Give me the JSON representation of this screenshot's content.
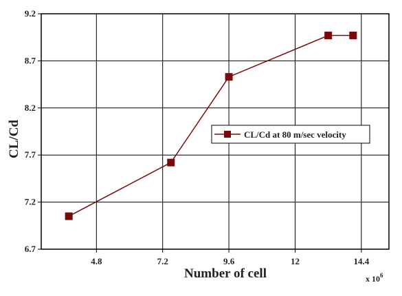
{
  "chart_data": {
    "type": "line",
    "xlabel": "Number of cell",
    "ylabel": "CL/Cd",
    "x_multiplier_base": "x 10",
    "x_multiplier_exp": "6",
    "xlim": [
      2.8,
      15.4
    ],
    "ylim": [
      6.7,
      9.2
    ],
    "x_ticks": [
      4.8,
      7.2,
      9.6,
      12,
      14.4
    ],
    "x_tick_labels": [
      "4.8",
      "7.2",
      "9.6",
      "12",
      "14.4"
    ],
    "y_ticks": [
      6.7,
      7.2,
      7.7,
      8.2,
      8.7,
      9.2
    ],
    "y_tick_labels": [
      "6.7",
      "7.2",
      "7.7",
      "8.2",
      "8.7",
      "9.2"
    ],
    "grid": true,
    "legend_position": "center-right",
    "series": [
      {
        "name": "CL/Cd at 80 m/sec velocity",
        "color": "#7a0a0a",
        "marker": "square",
        "x": [
          3.8,
          7.5,
          9.6,
          13.2,
          14.1
        ],
        "y": [
          7.05,
          7.62,
          8.53,
          8.97,
          8.97
        ]
      }
    ]
  }
}
